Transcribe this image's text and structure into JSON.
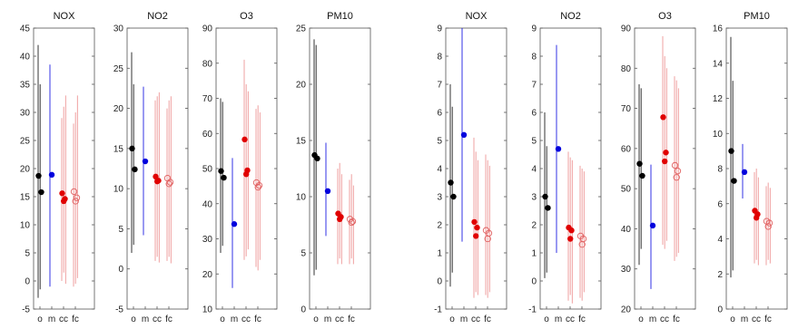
{
  "chart_data": [
    {
      "type": "scatter",
      "title": "NOX",
      "ylim": [
        -5,
        45
      ],
      "yticks": [
        -5,
        0,
        5,
        10,
        15,
        20,
        25,
        30,
        35,
        40,
        45
      ],
      "categories": [
        "o",
        "m",
        "cc",
        "fc"
      ],
      "series": [
        {
          "category": "o",
          "color": "#000000",
          "marker": "filled",
          "points": [
            18.7,
            15.8
          ],
          "ranges": [
            [
              -3,
              42
            ],
            [
              -1.5,
              35
            ]
          ]
        },
        {
          "category": "m",
          "color": "#0000dd",
          "marker": "filled",
          "points": [
            18.9
          ],
          "ranges": [
            [
              -1,
              38.5
            ]
          ]
        },
        {
          "category": "cc",
          "color": "#e00000",
          "marker": "filled",
          "points": [
            15.6,
            14.6,
            14.2
          ],
          "ranges": [
            [
              0,
              29
            ],
            [
              1.5,
              31
            ],
            [
              -0.5,
              33
            ]
          ]
        },
        {
          "category": "fc",
          "color": "#e06060",
          "marker": "open",
          "points": [
            15.9,
            14.8,
            14.2
          ],
          "ranges": [
            [
              -1,
              28
            ],
            [
              -0.5,
              30
            ],
            [
              0.5,
              33
            ]
          ]
        }
      ]
    },
    {
      "type": "scatter",
      "title": "NO2",
      "ylim": [
        -5,
        30
      ],
      "yticks": [
        -5,
        0,
        5,
        10,
        15,
        20,
        25,
        30
      ],
      "categories": [
        "o",
        "m",
        "cc",
        "fc"
      ],
      "series": [
        {
          "category": "o",
          "color": "#000000",
          "marker": "filled",
          "points": [
            15.0,
            12.4
          ],
          "ranges": [
            [
              2,
              27
            ],
            [
              3,
              23
            ]
          ]
        },
        {
          "category": "m",
          "color": "#0000dd",
          "marker": "filled",
          "points": [
            13.4
          ],
          "ranges": [
            [
              4.2,
              22.7
            ]
          ]
        },
        {
          "category": "cc",
          "color": "#e00000",
          "marker": "filled",
          "points": [
            11.5,
            11.0,
            10.9
          ],
          "ranges": [
            [
              1,
              21
            ],
            [
              1.5,
              21.5
            ],
            [
              0.8,
              22
            ]
          ]
        },
        {
          "category": "fc",
          "color": "#e06060",
          "marker": "open",
          "points": [
            11.3,
            10.8,
            10.6
          ],
          "ranges": [
            [
              1,
              20
            ],
            [
              1.5,
              21
            ],
            [
              0.7,
              21.5
            ]
          ]
        }
      ]
    },
    {
      "type": "scatter",
      "title": "O3",
      "ylim": [
        10,
        90
      ],
      "yticks": [
        10,
        20,
        30,
        40,
        50,
        60,
        70,
        80,
        90
      ],
      "categories": [
        "o",
        "m",
        "cc",
        "fc"
      ],
      "series": [
        {
          "category": "o",
          "color": "#000000",
          "marker": "filled",
          "points": [
            49.3,
            47.4
          ],
          "ranges": [
            [
              26,
              70
            ],
            [
              28,
              69
            ]
          ]
        },
        {
          "category": "m",
          "color": "#0000dd",
          "marker": "filled",
          "points": [
            34.2
          ],
          "ranges": [
            [
              16,
              53
            ]
          ]
        },
        {
          "category": "cc",
          "color": "#e00000",
          "marker": "filled",
          "points": [
            58.3,
            49.5,
            48.4
          ],
          "ranges": [
            [
              24,
              81
            ],
            [
              25,
              74
            ],
            [
              27,
              72
            ]
          ]
        },
        {
          "category": "fc",
          "color": "#e06060",
          "marker": "open",
          "points": [
            46.0,
            45.2,
            44.7
          ],
          "ranges": [
            [
              22,
              67
            ],
            [
              21,
              68
            ],
            [
              24,
              66
            ]
          ]
        }
      ]
    },
    {
      "type": "scatter",
      "title": "PM10",
      "ylim": [
        0,
        25
      ],
      "yticks": [
        0,
        5,
        10,
        15,
        20,
        25
      ],
      "categories": [
        "o",
        "m",
        "cc",
        "fc"
      ],
      "series": [
        {
          "category": "o",
          "color": "#000000",
          "marker": "filled",
          "points": [
            13.7,
            13.4
          ],
          "ranges": [
            [
              3,
              24
            ],
            [
              3.5,
              23.5
            ]
          ]
        },
        {
          "category": "m",
          "color": "#0000dd",
          "marker": "filled",
          "points": [
            10.5
          ],
          "ranges": [
            [
              6.5,
              14.8
            ]
          ]
        },
        {
          "category": "cc",
          "color": "#e00000",
          "marker": "filled",
          "points": [
            8.5,
            8.2,
            8.0
          ],
          "ranges": [
            [
              4,
              12.5
            ],
            [
              4.5,
              13
            ],
            [
              4,
              12
            ]
          ]
        },
        {
          "category": "fc",
          "color": "#e06060",
          "marker": "open",
          "points": [
            8.0,
            7.8,
            7.7
          ],
          "ranges": [
            [
              4,
              11.5
            ],
            [
              4.5,
              12
            ],
            [
              4,
              11
            ]
          ]
        }
      ]
    },
    {
      "type": "scatter",
      "title": "NOX",
      "ylim": [
        -1,
        9
      ],
      "yticks": [
        -1,
        0,
        1,
        2,
        3,
        4,
        5,
        6,
        7,
        8,
        9
      ],
      "categories": [
        "o",
        "m",
        "cc",
        "fc"
      ],
      "series": [
        {
          "category": "o",
          "color": "#000000",
          "marker": "filled",
          "points": [
            3.5,
            3.0
          ],
          "ranges": [
            [
              -0.2,
              7
            ],
            [
              0.3,
              6.2
            ]
          ]
        },
        {
          "category": "m",
          "color": "#0000dd",
          "marker": "filled",
          "points": [
            5.2
          ],
          "ranges": [
            [
              1.4,
              9
            ]
          ]
        },
        {
          "category": "cc",
          "color": "#e00000",
          "marker": "filled",
          "points": [
            2.1,
            1.9,
            1.6
          ],
          "ranges": [
            [
              -0.6,
              5.1
            ],
            [
              -0.4,
              4.6
            ],
            [
              -0.5,
              4.3
            ]
          ]
        },
        {
          "category": "fc",
          "color": "#e06060",
          "marker": "open",
          "points": [
            1.8,
            1.7,
            1.5
          ],
          "ranges": [
            [
              -0.5,
              4.5
            ],
            [
              -0.6,
              4.3
            ],
            [
              -0.4,
              4.1
            ]
          ]
        }
      ]
    },
    {
      "type": "scatter",
      "title": "NO2",
      "ylim": [
        -1,
        9
      ],
      "yticks": [
        -1,
        0,
        1,
        2,
        3,
        4,
        5,
        6,
        7,
        8,
        9
      ],
      "categories": [
        "o",
        "m",
        "cc",
        "fc"
      ],
      "series": [
        {
          "category": "o",
          "color": "#000000",
          "marker": "filled",
          "points": [
            3.0,
            2.6
          ],
          "ranges": [
            [
              0.1,
              6
            ],
            [
              0.3,
              4.8
            ]
          ]
        },
        {
          "category": "m",
          "color": "#0000dd",
          "marker": "filled",
          "points": [
            4.7
          ],
          "ranges": [
            [
              1,
              8.4
            ]
          ]
        },
        {
          "category": "cc",
          "color": "#e00000",
          "marker": "filled",
          "points": [
            1.9,
            1.8,
            1.5
          ],
          "ranges": [
            [
              -0.7,
              4.6
            ],
            [
              -0.5,
              4.4
            ],
            [
              -0.8,
              4.3
            ]
          ]
        },
        {
          "category": "fc",
          "color": "#e06060",
          "marker": "open",
          "points": [
            1.6,
            1.5,
            1.3
          ],
          "ranges": [
            [
              -0.6,
              4.1
            ],
            [
              -0.7,
              4
            ],
            [
              -0.4,
              3.9
            ]
          ]
        }
      ]
    },
    {
      "type": "scatter",
      "title": "O3",
      "ylim": [
        20,
        90
      ],
      "yticks": [
        20,
        30,
        40,
        50,
        60,
        70,
        80,
        90
      ],
      "categories": [
        "o",
        "m",
        "cc",
        "fc"
      ],
      "series": [
        {
          "category": "o",
          "color": "#000000",
          "marker": "filled",
          "points": [
            56.2,
            53.2
          ],
          "ranges": [
            [
              31,
              76
            ],
            [
              35,
              75
            ]
          ]
        },
        {
          "category": "m",
          "color": "#0000dd",
          "marker": "filled",
          "points": [
            40.8
          ],
          "ranges": [
            [
              25,
              56
            ]
          ]
        },
        {
          "category": "cc",
          "color": "#e00000",
          "marker": "filled",
          "points": [
            67.8,
            59.0,
            56.8
          ],
          "ranges": [
            [
              36,
              88
            ],
            [
              35,
              83
            ],
            [
              37,
              80
            ]
          ]
        },
        {
          "category": "fc",
          "color": "#e06060",
          "marker": "open",
          "points": [
            55.8,
            54.4,
            52.8
          ],
          "ranges": [
            [
              32,
              78
            ],
            [
              33,
              77
            ],
            [
              34,
              75
            ]
          ]
        }
      ]
    },
    {
      "type": "scatter",
      "title": "PM10",
      "ylim": [
        0,
        16
      ],
      "yticks": [
        0,
        2,
        4,
        6,
        8,
        10,
        12,
        14,
        16
      ],
      "categories": [
        "o",
        "m",
        "cc",
        "fc"
      ],
      "series": [
        {
          "category": "o",
          "color": "#000000",
          "marker": "filled",
          "points": [
            9.0,
            7.3
          ],
          "ranges": [
            [
              1.8,
              15.5
            ],
            [
              2.2,
              13
            ]
          ]
        },
        {
          "category": "m",
          "color": "#0000dd",
          "marker": "filled",
          "points": [
            7.8
          ],
          "ranges": [
            [
              6.3,
              9.4
            ]
          ]
        },
        {
          "category": "cc",
          "color": "#e00000",
          "marker": "filled",
          "points": [
            5.6,
            5.4,
            5.2
          ],
          "ranges": [
            [
              2.6,
              7.8
            ],
            [
              2.8,
              8
            ],
            [
              2.5,
              7.5
            ]
          ]
        },
        {
          "category": "fc",
          "color": "#e06060",
          "marker": "open",
          "points": [
            5.0,
            4.9,
            4.7
          ],
          "ranges": [
            [
              2.5,
              7
            ],
            [
              2.8,
              7.2
            ],
            [
              2.6,
              6.9
            ]
          ]
        }
      ]
    }
  ]
}
